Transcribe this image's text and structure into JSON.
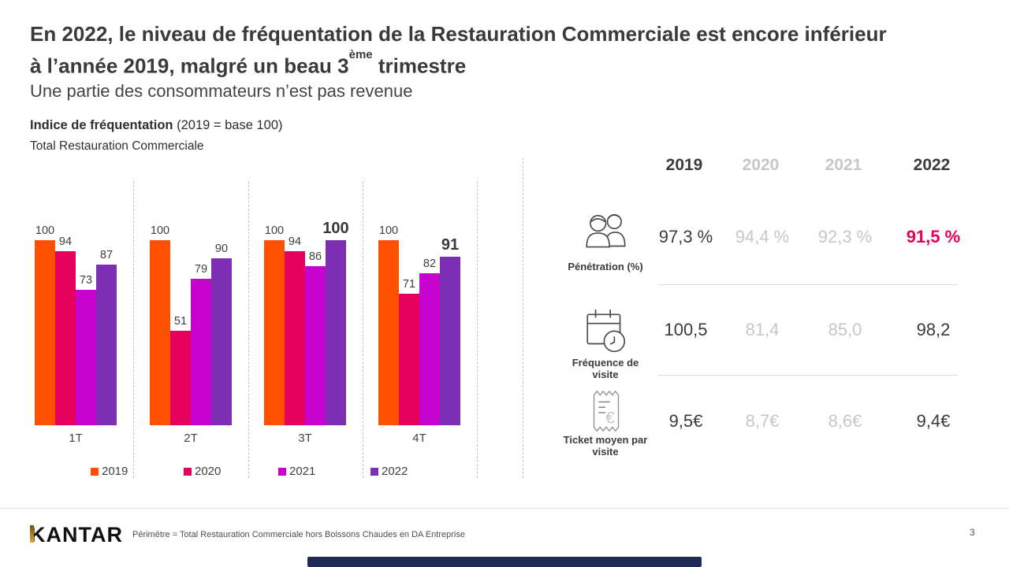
{
  "slide": {
    "title_line1": "En 2022, le niveau de fréquentation de la Restauration Commerciale est encore inférieur",
    "title_line2_pre": "à l’année 2019, malgré un beau 3",
    "title_line2_sup": "ème",
    "title_line2_post": " trimestre",
    "subtitle": "Une partie des consommateurs n’est pas revenue",
    "logo_text": "KANTAR",
    "footer_note": "Périmètre = Total Restauration Commerciale  hors Boissons Chaudes en DA Entreprise",
    "page_number": "3"
  },
  "colors": {
    "accent_pink": "#e4005c",
    "muted_gray": "#c7c7c7",
    "text_dark": "#3b3b3b",
    "bottom_bar_navy": "#1f2b55",
    "kantar_gold": "#d9ab2e"
  },
  "chart_data": {
    "type": "bar",
    "title": "Indice de fréquentation",
    "title_suffix": " (2019 = base 100)",
    "subtitle": "Total Restauration Commerciale",
    "categories": [
      "1T",
      "2T",
      "3T",
      "4T"
    ],
    "series": [
      {
        "name": "2019",
        "color": "#FF5000",
        "values": [
          100,
          100,
          100,
          100
        ]
      },
      {
        "name": "2020",
        "color": "#E8005D",
        "values": [
          94,
          51,
          94,
          71
        ]
      },
      {
        "name": "2021",
        "color": "#C603CE",
        "values": [
          73,
          79,
          86,
          82
        ]
      },
      {
        "name": "2022",
        "color": "#7C2FB3",
        "values": [
          87,
          90,
          100,
          91
        ]
      }
    ],
    "emphasized_labels": [
      {
        "category": "3T",
        "series": "2022"
      },
      {
        "category": "4T",
        "series": "2022"
      }
    ],
    "ylim": [
      0,
      100
    ],
    "grid": false,
    "legend_position": "bottom"
  },
  "kpi_table": {
    "years": [
      {
        "label": "2019"
      },
      {
        "label": "2020"
      },
      {
        "label": "2021"
      },
      {
        "label": "2022"
      }
    ],
    "rows": [
      {
        "icon": "people-icon",
        "label": "Pénétration (%)",
        "label_lines": [
          "Pénétration (%)",
          ""
        ],
        "values": [
          "97,3 %",
          "94,4 %",
          "92,3 %",
          "91,5 %"
        ],
        "highlight_last": true
      },
      {
        "icon": "calendar-clock-icon",
        "label": "Fréquence de visite",
        "label_lines": [
          "Fréquence de",
          "visite"
        ],
        "values": [
          "100,5",
          "81,4",
          "85,0",
          "98,2"
        ],
        "highlight_last": false
      },
      {
        "icon": "receipt-euro-icon",
        "label": "Ticket moyen par visite",
        "label_lines": [
          "Ticket moyen par",
          "visite"
        ],
        "values": [
          "9,5€",
          "8,7€",
          "8,6€",
          "9,4€"
        ],
        "highlight_last": false
      }
    ]
  }
}
